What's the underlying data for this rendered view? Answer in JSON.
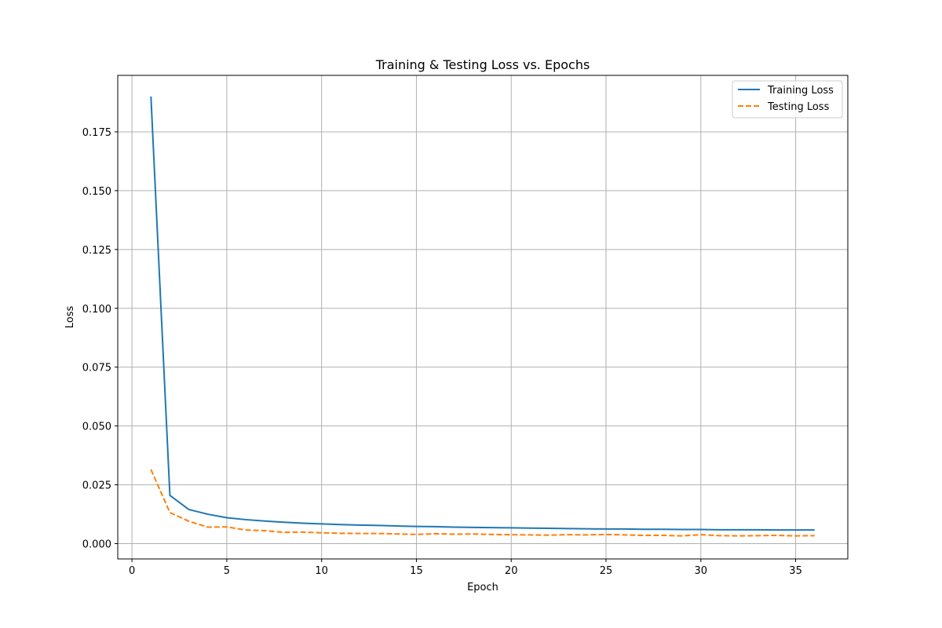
{
  "chart_data": {
    "type": "line",
    "title": "Training & Testing Loss vs. Epochs",
    "xlabel": "Epoch",
    "ylabel": "Loss",
    "xlim": [
      -0.75,
      37.75
    ],
    "ylim": [
      -0.0065,
      0.199
    ],
    "xticks": [
      0,
      5,
      10,
      15,
      20,
      25,
      30,
      35
    ],
    "xtick_labels": [
      "0",
      "5",
      "10",
      "15",
      "20",
      "25",
      "30",
      "35"
    ],
    "yticks": [
      0.0,
      0.025,
      0.05,
      0.075,
      0.1,
      0.125,
      0.15,
      0.175
    ],
    "ytick_labels": [
      "0.000",
      "0.025",
      "0.050",
      "0.075",
      "0.100",
      "0.125",
      "0.150",
      "0.175"
    ],
    "grid": true,
    "legend_position": "top-right",
    "x": [
      1,
      2,
      3,
      4,
      5,
      6,
      7,
      8,
      9,
      10,
      11,
      12,
      13,
      14,
      15,
      16,
      17,
      18,
      19,
      20,
      21,
      22,
      23,
      24,
      25,
      26,
      27,
      28,
      29,
      30,
      31,
      32,
      33,
      34,
      35,
      36
    ],
    "series": [
      {
        "name": "Training Loss",
        "color": "#1f77b4",
        "linestyle": "solid",
        "values": [
          0.19,
          0.0205,
          0.0145,
          0.0125,
          0.011,
          0.0102,
          0.0096,
          0.0091,
          0.0087,
          0.0084,
          0.0081,
          0.0079,
          0.0077,
          0.0075,
          0.0073,
          0.0072,
          0.007,
          0.0069,
          0.0068,
          0.0067,
          0.0066,
          0.0065,
          0.0064,
          0.0063,
          0.0062,
          0.0062,
          0.0061,
          0.0061,
          0.006,
          0.006,
          0.0059,
          0.0059,
          0.0059,
          0.0058,
          0.0058,
          0.0058
        ]
      },
      {
        "name": "Testing Loss",
        "color": "#ff7f0e",
        "linestyle": "dashed",
        "values": [
          0.0315,
          0.0132,
          0.0095,
          0.007,
          0.0071,
          0.0058,
          0.0055,
          0.0048,
          0.0049,
          0.0046,
          0.0044,
          0.0043,
          0.0043,
          0.0041,
          0.0039,
          0.0042,
          0.004,
          0.0041,
          0.0039,
          0.0038,
          0.0037,
          0.0036,
          0.0038,
          0.0037,
          0.0039,
          0.0037,
          0.0035,
          0.0035,
          0.0033,
          0.0038,
          0.0034,
          0.0033,
          0.0034,
          0.0035,
          0.0033,
          0.0034
        ]
      }
    ]
  }
}
